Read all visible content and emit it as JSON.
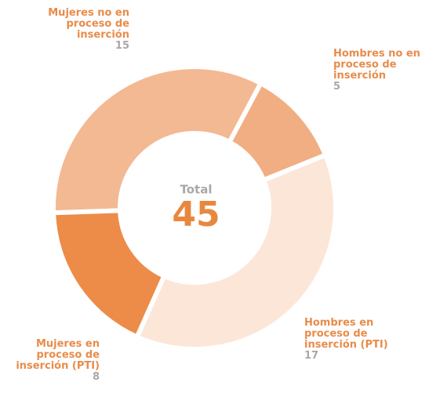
{
  "chart_data": {
    "type": "donut",
    "center_label": "Total",
    "total": 45,
    "categories": [
      "Hombres no en proceso de inserción",
      "Hombres en proceso de inserción (PTI)",
      "Mujeres en proceso de inserción (PTI)",
      "Mujeres no en proceso de inserción"
    ],
    "values": [
      5,
      17,
      8,
      15
    ],
    "colors": [
      "#f0ae82",
      "#fce6d8",
      "#ec8c48",
      "#f3b992"
    ]
  }
}
